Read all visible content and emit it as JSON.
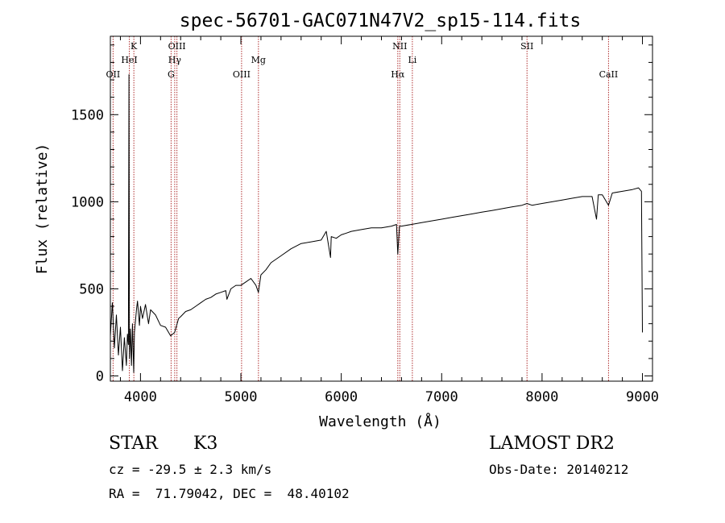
{
  "chart_data": {
    "type": "line",
    "title": "spec-56701-GAC071N47V2_sp15-114.fits",
    "xlabel": "Wavelength (Å)",
    "ylabel": "Flux (relative)",
    "xlim": [
      3700,
      9100
    ],
    "ylim": [
      -30,
      1950
    ],
    "x_ticks": [
      4000,
      5000,
      6000,
      7000,
      8000,
      9000
    ],
    "x_tick_labels": [
      "4000",
      "5000",
      "6000",
      "7000",
      "8000",
      "9000"
    ],
    "y_ticks": [
      0,
      500,
      1000,
      1500
    ],
    "y_tick_labels": [
      "0",
      "500",
      "1000",
      "1500"
    ],
    "grid": false,
    "series": [
      {
        "name": "spectrum",
        "x": [
          3700,
          3720,
          3740,
          3760,
          3780,
          3800,
          3820,
          3840,
          3860,
          3870,
          3880,
          3885,
          3890,
          3900,
          3910,
          3920,
          3933,
          3940,
          3960,
          3970,
          3990,
          4000,
          4020,
          4050,
          4080,
          4100,
          4150,
          4200,
          4250,
          4300,
          4340,
          4380,
          4400,
          4450,
          4500,
          4550,
          4600,
          4650,
          4700,
          4750,
          4800,
          4850,
          4861,
          4900,
          4950,
          5000,
          5050,
          5100,
          5150,
          5175,
          5200,
          5250,
          5300,
          5400,
          5500,
          5600,
          5700,
          5800,
          5850,
          5893,
          5900,
          5950,
          6000,
          6050,
          6100,
          6200,
          6300,
          6400,
          6500,
          6550,
          6563,
          6580,
          6600,
          6700,
          6800,
          6900,
          7000,
          7100,
          7200,
          7300,
          7400,
          7500,
          7600,
          7700,
          7800,
          7850,
          7900,
          8000,
          8100,
          8200,
          8300,
          8400,
          8498,
          8542,
          8560,
          8600,
          8662,
          8700,
          8800,
          8900,
          8960,
          8990,
          9000
        ],
        "values": [
          230,
          420,
          160,
          350,
          120,
          280,
          30,
          220,
          60,
          240,
          180,
          1730,
          100,
          270,
          60,
          300,
          20,
          250,
          380,
          430,
          290,
          400,
          330,
          410,
          300,
          380,
          350,
          290,
          280,
          230,
          250,
          330,
          340,
          370,
          380,
          400,
          420,
          440,
          450,
          470,
          480,
          490,
          440,
          500,
          520,
          520,
          540,
          560,
          520,
          480,
          580,
          610,
          650,
          690,
          730,
          760,
          770,
          780,
          830,
          680,
          800,
          790,
          810,
          820,
          830,
          840,
          850,
          850,
          860,
          870,
          700,
          860,
          860,
          870,
          880,
          890,
          900,
          910,
          920,
          930,
          940,
          950,
          960,
          970,
          980,
          990,
          980,
          990,
          1000,
          1010,
          1020,
          1030,
          1030,
          900,
          1040,
          1040,
          980,
          1050,
          1060,
          1070,
          1080,
          1060,
          250
        ]
      }
    ],
    "line_labels": [
      {
        "label": "OII",
        "x": 3727,
        "row": 3
      },
      {
        "label": "HeI",
        "x": 3889,
        "row": 2
      },
      {
        "label": "K",
        "x": 3934,
        "row": 1
      },
      {
        "label": "OIII",
        "x": 4363,
        "row": 1
      },
      {
        "label": "Hγ",
        "x": 4341,
        "row": 2
      },
      {
        "label": "G",
        "x": 4305,
        "row": 3
      },
      {
        "label": "OIII",
        "x": 5007,
        "row": 3
      },
      {
        "label": "Mg",
        "x": 5175,
        "row": 2
      },
      {
        "label": "NII",
        "x": 6583,
        "row": 1
      },
      {
        "label": "Hα",
        "x": 6563,
        "row": 3
      },
      {
        "label": "Li",
        "x": 6708,
        "row": 2
      },
      {
        "label": "SII",
        "x": 7850,
        "row": 1
      },
      {
        "label": "CaII",
        "x": 8662,
        "row": 3
      }
    ],
    "line_positions": [
      3727,
      3889,
      3934,
      4305,
      4341,
      4363,
      5007,
      5175,
      6563,
      6583,
      6708,
      7850,
      8662
    ]
  },
  "info": {
    "object_class": "STAR",
    "subclass": "K3",
    "redshift_text": "cz = -29.5 ± 2.3 km/s",
    "coords_text": "RA =  71.79042, DEC =  48.40102",
    "survey": "LAMOST DR2",
    "obs_date": "Obs-Date: 20140212"
  },
  "colors": {
    "spectrum": "#000000",
    "marker_lines": "#b03030",
    "axes": "#000000"
  }
}
